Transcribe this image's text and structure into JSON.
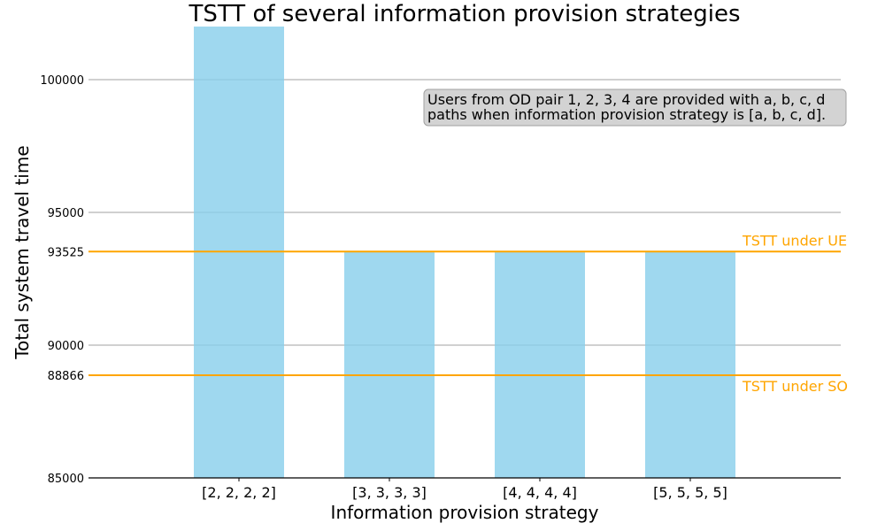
{
  "chart_data": {
    "type": "bar",
    "title": "TSTT of several information provision strategies",
    "xlabel": "Information provision strategy",
    "ylabel": "Total system travel time",
    "categories": [
      "[2, 2, 2, 2]",
      "[3, 3, 3, 3]",
      "[4, 4, 4, 4]",
      "[5, 5, 5, 5]"
    ],
    "values": [
      102000,
      93525,
      93525,
      93525
    ],
    "ylim": [
      85000,
      102000
    ],
    "yticks": [
      85000,
      88866,
      90000,
      93525,
      95000,
      100000
    ],
    "ytick_labels": [
      "85000",
      "88866",
      "90000",
      "93525",
      "95000",
      "100000"
    ],
    "grid": "horizontal",
    "bar_color": "#87ceeb",
    "reference_lines": [
      {
        "value": 93525,
        "label": "TSTT under UE",
        "color": "#ffa500",
        "label_position": "above"
      },
      {
        "value": 88866,
        "label": "TSTT under SO",
        "color": "#ffa500",
        "label_position": "below"
      }
    ],
    "annotation": {
      "lines": [
        "Users from OD pair 1, 2, 3, 4 are provided with a, b, c, d",
        "paths when information provision strategy is [a, b, c, d]."
      ]
    }
  }
}
